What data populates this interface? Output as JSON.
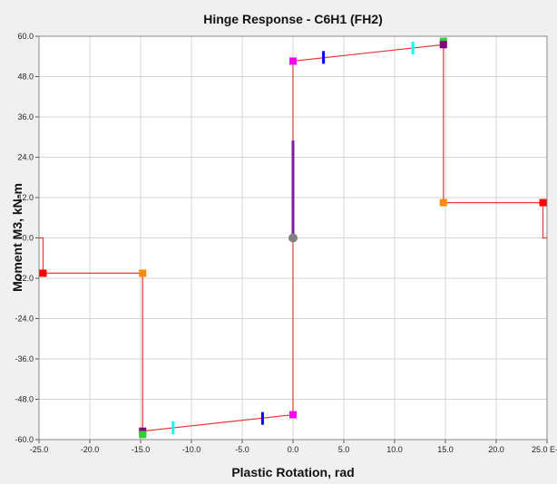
{
  "chart_data": {
    "type": "line",
    "title": "Hinge Response - C6H1 (FH2)",
    "xlabel": "Plastic Rotation, rad",
    "ylabel": "Moment M3, kN-m",
    "x_ticks": [
      "-25.0",
      "-20.0",
      "-15.0",
      "-10.0",
      "-5.0",
      "0.0",
      "5.0",
      "10.0",
      "15.0",
      "20.0",
      "25.0 E-3"
    ],
    "y_ticks": [
      "60.0",
      "48.0",
      "36.0",
      "24.0",
      "12.0",
      "0.0",
      "-12.0",
      "-24.0",
      "-36.0",
      "-48.0",
      "-60.0"
    ],
    "xlim": [
      -25,
      25
    ],
    "ylim": [
      -60,
      60
    ],
    "x_unit_scale": "E-3",
    "grid": true,
    "background_color": "#ffffff",
    "series": [
      {
        "color": "#e53935",
        "x": [
          -25,
          -24.6,
          -24.6,
          -14.8,
          -14.8,
          -14.8,
          0,
          0,
          0,
          14.8,
          14.8,
          14.8,
          24.6,
          24.6,
          25
        ],
        "y": [
          0,
          0,
          -10.5,
          -10.5,
          -57.5,
          -57.5,
          -52.6,
          0,
          52.6,
          57.5,
          57.5,
          10.5,
          10.5,
          0,
          0
        ]
      }
    ],
    "markers": [
      {
        "x": -24.6,
        "y": -10.5,
        "color": "#ff0000",
        "shape": "square"
      },
      {
        "x": -14.8,
        "y": -10.5,
        "color": "#ff8c00",
        "shape": "square"
      },
      {
        "x": -14.8,
        "y": -57.5,
        "color": "#800080",
        "shape": "square"
      },
      {
        "x": -14.8,
        "y": -58.5,
        "color": "#33cc33",
        "shape": "square"
      },
      {
        "x": -11.8,
        "y": -56.5,
        "color": "#00ffff",
        "shape": "bar"
      },
      {
        "x": -3.0,
        "y": -53.7,
        "color": "#0000ff",
        "shape": "bar"
      },
      {
        "x": 0,
        "y": -52.6,
        "color": "#ff00ff",
        "shape": "square"
      },
      {
        "x": 0,
        "y": 52.6,
        "color": "#ff00ff",
        "shape": "square"
      },
      {
        "x": 3.0,
        "y": 53.7,
        "color": "#0000ff",
        "shape": "bar"
      },
      {
        "x": 11.8,
        "y": 56.5,
        "color": "#00ffff",
        "shape": "bar"
      },
      {
        "x": 14.8,
        "y": 58.5,
        "color": "#33cc33",
        "shape": "square"
      },
      {
        "x": 14.8,
        "y": 57.5,
        "color": "#800080",
        "shape": "square"
      },
      {
        "x": 14.8,
        "y": 10.5,
        "color": "#ff8c00",
        "shape": "square"
      },
      {
        "x": 24.6,
        "y": 10.5,
        "color": "#ff0000",
        "shape": "square"
      }
    ],
    "current_state": {
      "x": 0,
      "y": 0,
      "color": "#808080"
    },
    "current_bar": {
      "x": 0,
      "y_from": 0,
      "y_to": 29,
      "color": "#7b1fa2"
    }
  }
}
